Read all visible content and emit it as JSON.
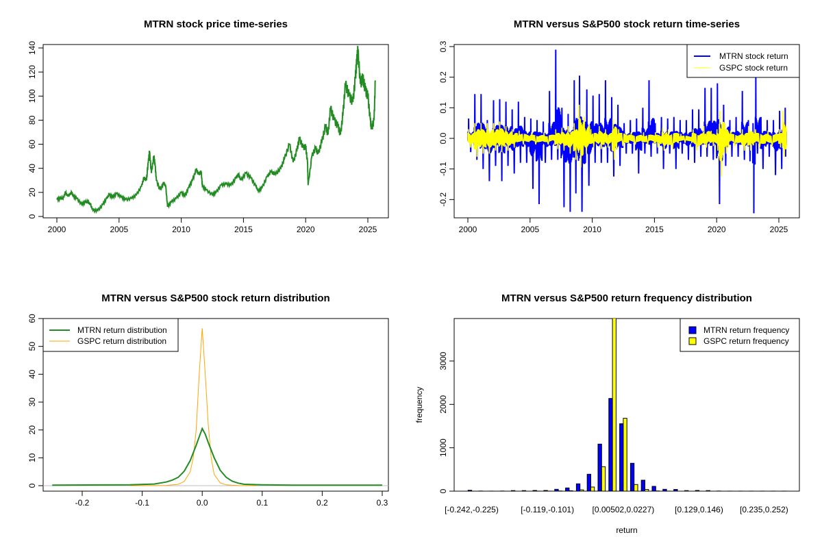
{
  "chart_data": [
    {
      "type": "line",
      "title": "MTRN stock price time-series",
      "xlabel": "",
      "ylabel": "",
      "xlim": [
        2000,
        2025.6
      ],
      "ylim": [
        0,
        140
      ],
      "x_ticks": [
        "2000",
        "2005",
        "2010",
        "2015",
        "2020",
        "2025"
      ],
      "y_ticks": [
        "0",
        "20",
        "40",
        "60",
        "80",
        "100",
        "120",
        "140"
      ],
      "color": "#228B22",
      "series": [
        {
          "name": "MTRN price",
          "x": [
            2000.0,
            2000.3,
            2000.5,
            2000.7,
            2000.85,
            2001.0,
            2001.2,
            2001.3,
            2001.6,
            2002.0,
            2002.3,
            2002.5,
            2002.7,
            2002.9,
            2003.3,
            2003.7,
            2004.0,
            2004.2,
            2004.5,
            2004.8,
            2005.2,
            2005.5,
            2006.0,
            2006.4,
            2006.8,
            2007.0,
            2007.2,
            2007.35,
            2007.45,
            2007.6,
            2007.8,
            2007.9,
            2008.0,
            2008.3,
            2008.6,
            2008.75,
            2008.9,
            2009.2,
            2009.6,
            2010.0,
            2010.3,
            2010.6,
            2010.9,
            2011.2,
            2011.4,
            2011.6,
            2011.7,
            2012.0,
            2012.5,
            2012.8,
            2013.2,
            2013.6,
            2014.0,
            2014.4,
            2014.6,
            2014.8,
            2015.2,
            2015.6,
            2016.0,
            2016.2,
            2016.5,
            2016.9,
            2017.2,
            2017.6,
            2018.0,
            2018.3,
            2018.7,
            2019.0,
            2019.3,
            2019.5,
            2019.8,
            2020.0,
            2020.15,
            2020.2,
            2020.5,
            2020.8,
            2021.0,
            2021.3,
            2021.6,
            2021.8,
            2022.0,
            2022.3,
            2022.6,
            2022.8,
            2023.0,
            2023.2,
            2023.5,
            2023.8,
            2024.0,
            2024.1,
            2024.2,
            2024.4,
            2024.6,
            2024.8,
            2025.0,
            2025.2,
            2025.3,
            2025.5,
            2025.6
          ],
          "y": [
            14,
            15,
            15,
            20,
            17,
            18,
            20,
            17,
            15,
            10,
            12,
            12,
            10,
            5,
            5,
            10,
            15,
            18,
            16,
            19,
            16,
            14,
            15,
            18,
            25,
            32,
            30,
            45,
            54,
            36,
            50,
            42,
            30,
            22,
            28,
            25,
            8,
            12,
            15,
            20,
            17,
            24,
            30,
            39,
            35,
            37,
            25,
            22,
            18,
            20,
            26,
            27,
            26,
            32,
            35,
            30,
            36,
            32,
            25,
            21,
            24,
            33,
            37,
            35,
            40,
            48,
            60,
            45,
            55,
            65,
            57,
            58,
            45,
            26,
            50,
            57,
            52,
            62,
            75,
            68,
            90,
            80,
            75,
            68,
            85,
            110,
            100,
            95,
            115,
            128,
            138,
            110,
            115,
            105,
            100,
            80,
            73,
            80,
            113
          ]
        }
      ]
    },
    {
      "type": "line",
      "title": "MTRN versus S&P500 stock return time-series",
      "xlabel": "",
      "ylabel": "",
      "xlim": [
        2000,
        2025.6
      ],
      "ylim": [
        -0.25,
        0.3
      ],
      "x_ticks": [
        "2000",
        "2005",
        "2010",
        "2015",
        "2020",
        "2025"
      ],
      "y_ticks": [
        "-0.2",
        "-0.1",
        "0.0",
        "0.1",
        "0.2",
        "0.3"
      ],
      "legend": {
        "position": "top-right",
        "entries": [
          "MTRN stock return",
          "GSPC stock return"
        ]
      },
      "series": [
        {
          "name": "MTRN stock return",
          "color": "#0000FF",
          "x": [
            2000.0,
            2000.5,
            2001.0,
            2001.5,
            2002.0,
            2002.5,
            2003.0,
            2003.5,
            2004.0,
            2004.5,
            2005.0,
            2005.5,
            2006.0,
            2006.5,
            2007.0,
            2007.5,
            2008.0,
            2008.5,
            2008.9,
            2009.5,
            2010.0,
            2010.5,
            2011.0,
            2011.5,
            2012.0,
            2012.5,
            2013.0,
            2013.5,
            2014.0,
            2014.5,
            2015.0,
            2015.5,
            2016.0,
            2016.5,
            2017.0,
            2017.5,
            2018.0,
            2018.5,
            2019.0,
            2019.5,
            2020.0,
            2020.5,
            2021.0,
            2021.5,
            2022.0,
            2022.5,
            2022.9,
            2023.1,
            2023.5,
            2024.0,
            2024.5,
            2025.0,
            2025.5
          ],
          "max": [
            0.065,
            0.145,
            0.145,
            0.06,
            0.125,
            0.128,
            0.12,
            0.095,
            0.12,
            0.07,
            0.065,
            0.06,
            0.055,
            0.155,
            0.29,
            0.1,
            0.08,
            0.19,
            0.205,
            0.16,
            0.14,
            0.145,
            0.19,
            0.135,
            0.11,
            0.05,
            0.06,
            0.065,
            0.1,
            0.19,
            0.05,
            0.07,
            0.065,
            0.07,
            0.06,
            0.06,
            0.095,
            0.095,
            0.165,
            0.165,
            0.18,
            0.11,
            0.06,
            0.07,
            0.155,
            0.06,
            0.05,
            0.2,
            0.07,
            0.06,
            0.06,
            0.09,
            0.1
          ],
          "min": [
            -0.045,
            -0.07,
            -0.1,
            -0.14,
            -0.09,
            -0.14,
            -0.09,
            -0.115,
            -0.08,
            -0.08,
            -0.165,
            -0.215,
            -0.08,
            -0.07,
            -0.07,
            -0.225,
            -0.24,
            -0.18,
            -0.24,
            -0.155,
            -0.08,
            -0.08,
            -0.08,
            -0.125,
            -0.09,
            -0.05,
            -0.05,
            -0.115,
            -0.05,
            -0.06,
            -0.05,
            -0.1,
            -0.05,
            -0.1,
            -0.05,
            -0.07,
            -0.08,
            -0.06,
            -0.06,
            -0.07,
            -0.215,
            -0.09,
            -0.06,
            -0.06,
            -0.07,
            -0.075,
            -0.245,
            -0.05,
            -0.1,
            -0.06,
            -0.12,
            -0.1,
            -0.06
          ]
        },
        {
          "name": "GSPC stock return",
          "color": "#FFFF00",
          "x": [
            2000.0,
            2000.5,
            2001.0,
            2001.5,
            2002.0,
            2002.5,
            2003.0,
            2003.5,
            2004.0,
            2005.0,
            2006.0,
            2007.0,
            2007.5,
            2008.0,
            2008.5,
            2008.9,
            2009.3,
            2009.8,
            2010.5,
            2011.0,
            2011.6,
            2012.0,
            2013.0,
            2014.0,
            2015.0,
            2015.6,
            2016.0,
            2017.0,
            2018.0,
            2018.9,
            2019.5,
            2020.0,
            2020.2,
            2020.6,
            2021.0,
            2022.0,
            2022.5,
            2023.0,
            2024.0,
            2025.0,
            2025.3,
            2025.6
          ],
          "max": [
            0.03,
            0.05,
            0.05,
            0.05,
            0.05,
            0.055,
            0.04,
            0.03,
            0.025,
            0.02,
            0.02,
            0.03,
            0.035,
            0.04,
            0.05,
            0.11,
            0.07,
            0.03,
            0.04,
            0.03,
            0.065,
            0.03,
            0.02,
            0.02,
            0.02,
            0.035,
            0.03,
            0.015,
            0.03,
            0.04,
            0.025,
            0.03,
            0.09,
            0.05,
            0.025,
            0.03,
            0.04,
            0.03,
            0.025,
            0.03,
            0.09,
            0.03
          ],
          "min": [
            -0.03,
            -0.06,
            -0.05,
            -0.05,
            -0.04,
            -0.045,
            -0.04,
            -0.03,
            -0.02,
            -0.02,
            -0.02,
            -0.035,
            -0.04,
            -0.05,
            -0.07,
            -0.095,
            -0.05,
            -0.03,
            -0.035,
            -0.03,
            -0.07,
            -0.025,
            -0.02,
            -0.02,
            -0.03,
            -0.04,
            -0.035,
            -0.015,
            -0.04,
            -0.03,
            -0.025,
            -0.04,
            -0.125,
            -0.05,
            -0.025,
            -0.04,
            -0.04,
            -0.03,
            -0.025,
            -0.03,
            -0.06,
            -0.03
          ]
        }
      ]
    },
    {
      "type": "line",
      "title": "MTRN versus S&P500 stock return distribution",
      "xlabel": "",
      "ylabel": "",
      "xlim": [
        -0.25,
        0.3
      ],
      "ylim": [
        0,
        60
      ],
      "x_ticks": [
        "-0.2",
        "-0.1",
        "0.0",
        "0.1",
        "0.2",
        "0.3"
      ],
      "y_ticks": [
        "0",
        "10",
        "20",
        "30",
        "40",
        "50",
        "60"
      ],
      "legend": {
        "position": "top-left",
        "entries": [
          "MTRN return distribution",
          "GSPC return distribution"
        ]
      },
      "series": [
        {
          "name": "MTRN return distribution",
          "color": "#228B22",
          "x": [
            -0.25,
            -0.12,
            -0.08,
            -0.06,
            -0.05,
            -0.04,
            -0.03,
            -0.02,
            -0.01,
            -0.005,
            0,
            0.005,
            0.01,
            0.02,
            0.03,
            0.04,
            0.05,
            0.06,
            0.07,
            0.1,
            0.15,
            0.3
          ],
          "y": [
            0.2,
            0.3,
            0.6,
            1.3,
            2.0,
            3.0,
            5.2,
            9.0,
            14.5,
            17.5,
            20.5,
            18.5,
            15.5,
            10.0,
            5.5,
            3.0,
            1.6,
            0.9,
            0.5,
            0.3,
            0.2,
            0.2
          ]
        },
        {
          "name": "GSPC return distribution",
          "color": "#FFA500",
          "x": [
            -0.12,
            -0.06,
            -0.04,
            -0.03,
            -0.02,
            -0.015,
            -0.01,
            -0.005,
            0,
            0.005,
            0.01,
            0.015,
            0.02,
            0.03,
            0.04,
            0.06,
            0.09
          ],
          "y": [
            0,
            0.1,
            0.5,
            1.5,
            5,
            10,
            20,
            40,
            56.5,
            40,
            22,
            10,
            4,
            1,
            0.3,
            0.05,
            0
          ]
        }
      ]
    },
    {
      "type": "bar",
      "title": "MTRN versus S&P500 return frequency distribution",
      "xlabel": "return",
      "ylabel": "frequency",
      "ylim": [
        0,
        3980
      ],
      "y_ticks": [
        "0",
        "1000",
        "2000",
        "3000"
      ],
      "tick_labels": [
        {
          "bin": 0,
          "label": "[-0.242,-0.225)"
        },
        {
          "bin": 7,
          "label": "[-0.119,-0.101)"
        },
        {
          "bin": 14,
          "label": "[0.00502,0.0227)"
        },
        {
          "bin": 21,
          "label": "[0.129,0.146)"
        },
        {
          "bin": 27,
          "label": "[0.235,0.252)"
        }
      ],
      "legend": {
        "position": "top-right",
        "entries": [
          "MTRN return frequency",
          "GSPC return frequency"
        ]
      },
      "series": [
        {
          "name": "MTRN return frequency",
          "color": "#0000FF",
          "values": [
            20,
            3,
            2,
            3,
            12,
            12,
            15,
            15,
            42,
            74,
            169,
            390,
            1085,
            2137,
            1553,
            643,
            253,
            110,
            42,
            40,
            12,
            15,
            12,
            3,
            2,
            2,
            2,
            1,
            1,
            1
          ]
        },
        {
          "name": "GSPC return frequency",
          "color": "#FFFF00",
          "values": [
            0,
            0,
            0,
            0,
            0,
            0,
            1,
            2,
            5,
            10,
            30,
            95,
            564,
            4200,
            1680,
            153,
            40,
            5,
            2,
            0,
            0,
            0,
            0,
            0,
            0,
            0,
            0,
            0,
            0,
            0
          ]
        }
      ]
    }
  ]
}
